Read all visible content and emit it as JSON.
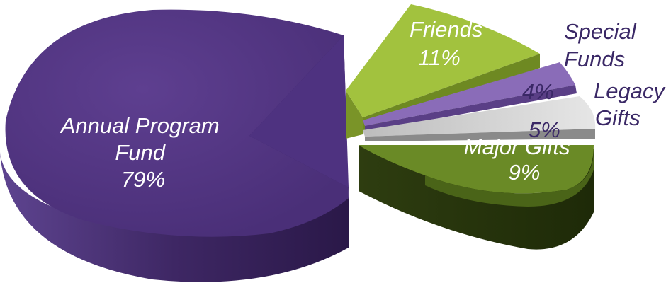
{
  "chart_data": {
    "type": "pie",
    "style": "3d-exploded",
    "slices": [
      {
        "name": "Annual Program Fund",
        "label_lines": [
          "Annual Program",
          "Fund",
          "79%"
        ],
        "value": 79,
        "color": "#5a3b8a",
        "label_color": "#ffffff"
      },
      {
        "name": "Friends",
        "label_lines": [
          "Friends",
          "11%"
        ],
        "value": 11,
        "color": "#9cbb3a",
        "label_color": "#ffffff"
      },
      {
        "name": "Special Funds",
        "label_lines": [
          "Special",
          "Funds",
          "4%"
        ],
        "value": 4,
        "color": "#8a6cb8",
        "label_color": "#3a2866"
      },
      {
        "name": "Legacy Gifts",
        "label_lines": [
          "Legacy",
          "Gifts",
          "5%"
        ],
        "value": 5,
        "color": "#c9c9c9",
        "label_color": "#3a2866"
      },
      {
        "name": "Major Gifts",
        "label_lines": [
          "Major Gifts",
          "9%"
        ],
        "value": 9,
        "color": "#6a8a26",
        "label_color": "#ffffff"
      }
    ]
  }
}
